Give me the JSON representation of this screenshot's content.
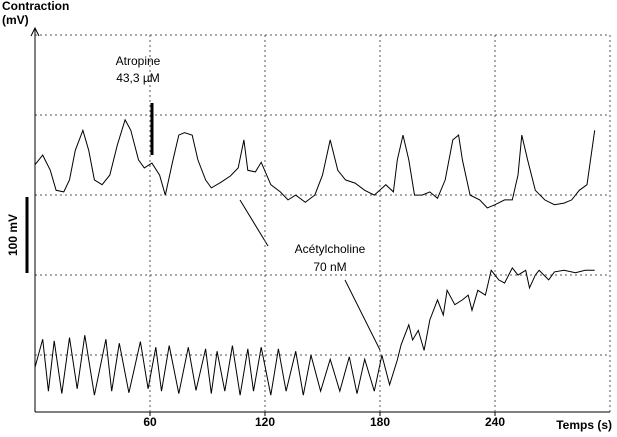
{
  "chart_data": {
    "type": "line",
    "y_label": "Contraction",
    "y_unit": "(mV)",
    "x_label": "Temps (s)",
    "scale_bar": "100 mV",
    "annotations": [
      [
        "Atropine",
        "43,3 µM"
      ],
      [
        "Acétylcholine",
        "70 nM"
      ]
    ],
    "xlim": [
      0,
      300
    ],
    "xticks": [
      60,
      120,
      180,
      240
    ],
    "ylim": [
      29,
      500
    ],
    "grid": true,
    "series": [
      {
        "color": "#000000",
        "x": [
          0,
          4,
          8,
          11,
          15,
          18,
          21,
          25,
          28,
          31,
          35,
          39,
          43,
          47,
          50,
          54,
          57,
          61,
          65,
          68,
          72,
          75,
          78,
          82,
          85,
          89,
          92,
          97,
          102,
          106,
          109,
          111,
          115,
          118,
          123,
          128,
          132,
          136,
          141,
          146,
          150,
          154,
          158,
          162,
          167,
          172,
          177,
          183,
          187,
          189,
          192,
          195,
          198,
          202,
          206,
          210,
          214,
          218,
          221,
          223,
          227,
          232,
          236,
          240,
          245,
          249,
          252,
          254,
          257,
          261,
          266,
          271,
          276,
          280,
          284,
          288,
          292
        ],
        "values": [
          338,
          350,
          331,
          306,
          304,
          319,
          356,
          381,
          356,
          319,
          313,
          325,
          363,
          394,
          381,
          344,
          334,
          340,
          325,
          300,
          344,
          375,
          378,
          375,
          344,
          319,
          309,
          316,
          324,
          334,
          369,
          331,
          329,
          341,
          313,
          304,
          294,
          300,
          291,
          300,
          325,
          369,
          331,
          319,
          315,
          306,
          300,
          313,
          304,
          344,
          375,
          344,
          300,
          300,
          304,
          296,
          319,
          369,
          375,
          344,
          300,
          294,
          284,
          288,
          294,
          294,
          325,
          375,
          344,
          306,
          294,
          288,
          290,
          294,
          306,
          313,
          381
        ]
      },
      {
        "color": "#000000",
        "x": [
          0,
          4,
          7,
          10,
          14,
          18,
          22,
          26,
          31,
          37,
          40,
          44,
          49,
          55,
          59,
          63,
          66,
          70,
          75,
          80,
          84,
          89,
          92,
          95,
          99,
          103,
          107,
          111,
          114,
          118,
          123,
          127,
          131,
          136,
          140,
          144,
          149,
          154,
          159,
          164,
          168,
          172,
          177,
          181,
          185,
          189,
          191,
          195,
          197,
          200,
          203,
          206,
          210,
          213,
          215,
          219,
          223,
          226,
          228,
          231,
          235,
          238,
          242,
          245,
          249,
          252,
          256,
          258,
          261,
          263,
          268,
          271,
          276,
          282,
          287,
          292
        ],
        "values": [
          85,
          120,
          55,
          118,
          52,
          122,
          58,
          125,
          50,
          120,
          55,
          115,
          53,
          117,
          58,
          110,
          55,
          112,
          52,
          110,
          56,
          108,
          52,
          105,
          55,
          112,
          50,
          108,
          55,
          110,
          50,
          108,
          55,
          105,
          50,
          100,
          55,
          95,
          55,
          98,
          52,
          95,
          55,
          100,
          63,
          94,
          113,
          138,
          119,
          131,
          106,
          144,
          169,
          150,
          181,
          163,
          169,
          175,
          156,
          181,
          175,
          206,
          194,
          190,
          209,
          200,
          206,
          184,
          200,
          206,
          194,
          204,
          206,
          203,
          206,
          206
        ]
      }
    ]
  }
}
